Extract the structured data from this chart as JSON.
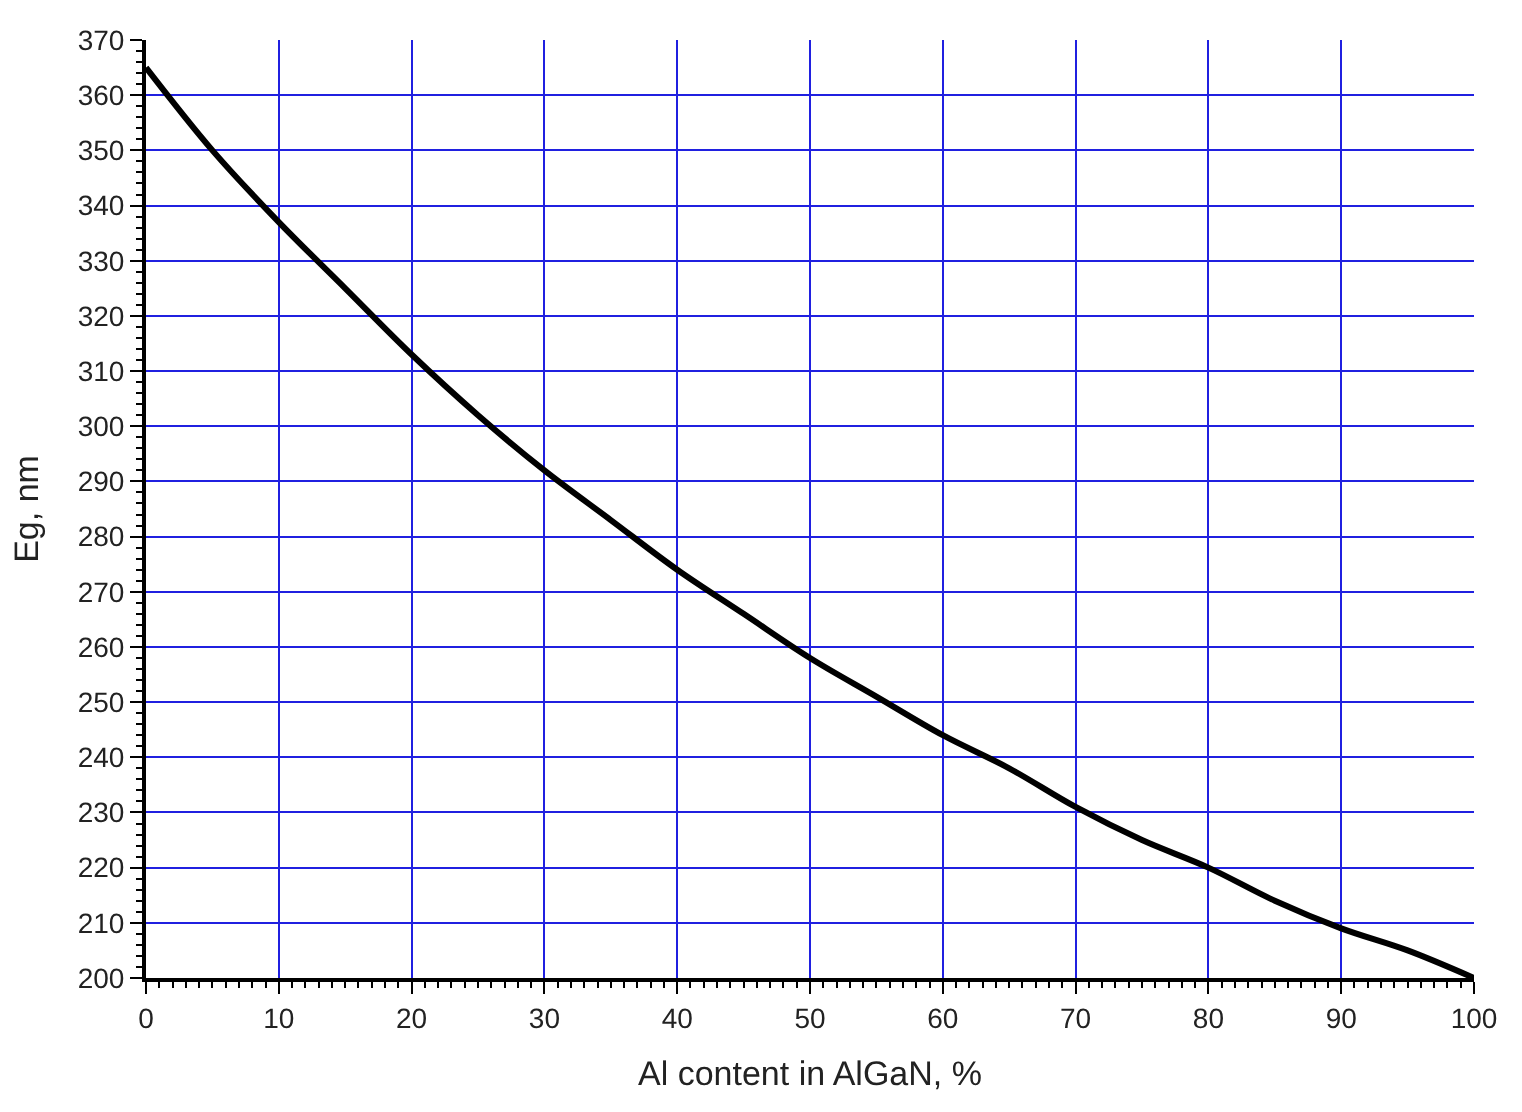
{
  "chart_data": {
    "type": "line",
    "xlabel": "Al content in AlGaN, %",
    "ylabel": "Eg, nm",
    "x": [
      0,
      5,
      10,
      15,
      20,
      25,
      30,
      35,
      40,
      45,
      50,
      55,
      60,
      65,
      70,
      75,
      80,
      85,
      90,
      95,
      100
    ],
    "series": [
      {
        "color": "#000000",
        "values": [
          365,
          350,
          337,
          325,
          313,
          302,
          292,
          283,
          274,
          266,
          258,
          251,
          244,
          238,
          231,
          225,
          220,
          214,
          209,
          205,
          200
        ]
      }
    ],
    "xlim": [
      0,
      100
    ],
    "xticks": [
      0,
      10,
      20,
      30,
      40,
      50,
      60,
      70,
      80,
      90,
      100
    ],
    "ylim": [
      200,
      370
    ],
    "yticks": [
      200,
      210,
      220,
      230,
      240,
      250,
      260,
      270,
      280,
      290,
      300,
      310,
      320,
      330,
      340,
      350,
      360,
      370
    ],
    "grid": true,
    "marker": "none",
    "line_style": "solid"
  }
}
